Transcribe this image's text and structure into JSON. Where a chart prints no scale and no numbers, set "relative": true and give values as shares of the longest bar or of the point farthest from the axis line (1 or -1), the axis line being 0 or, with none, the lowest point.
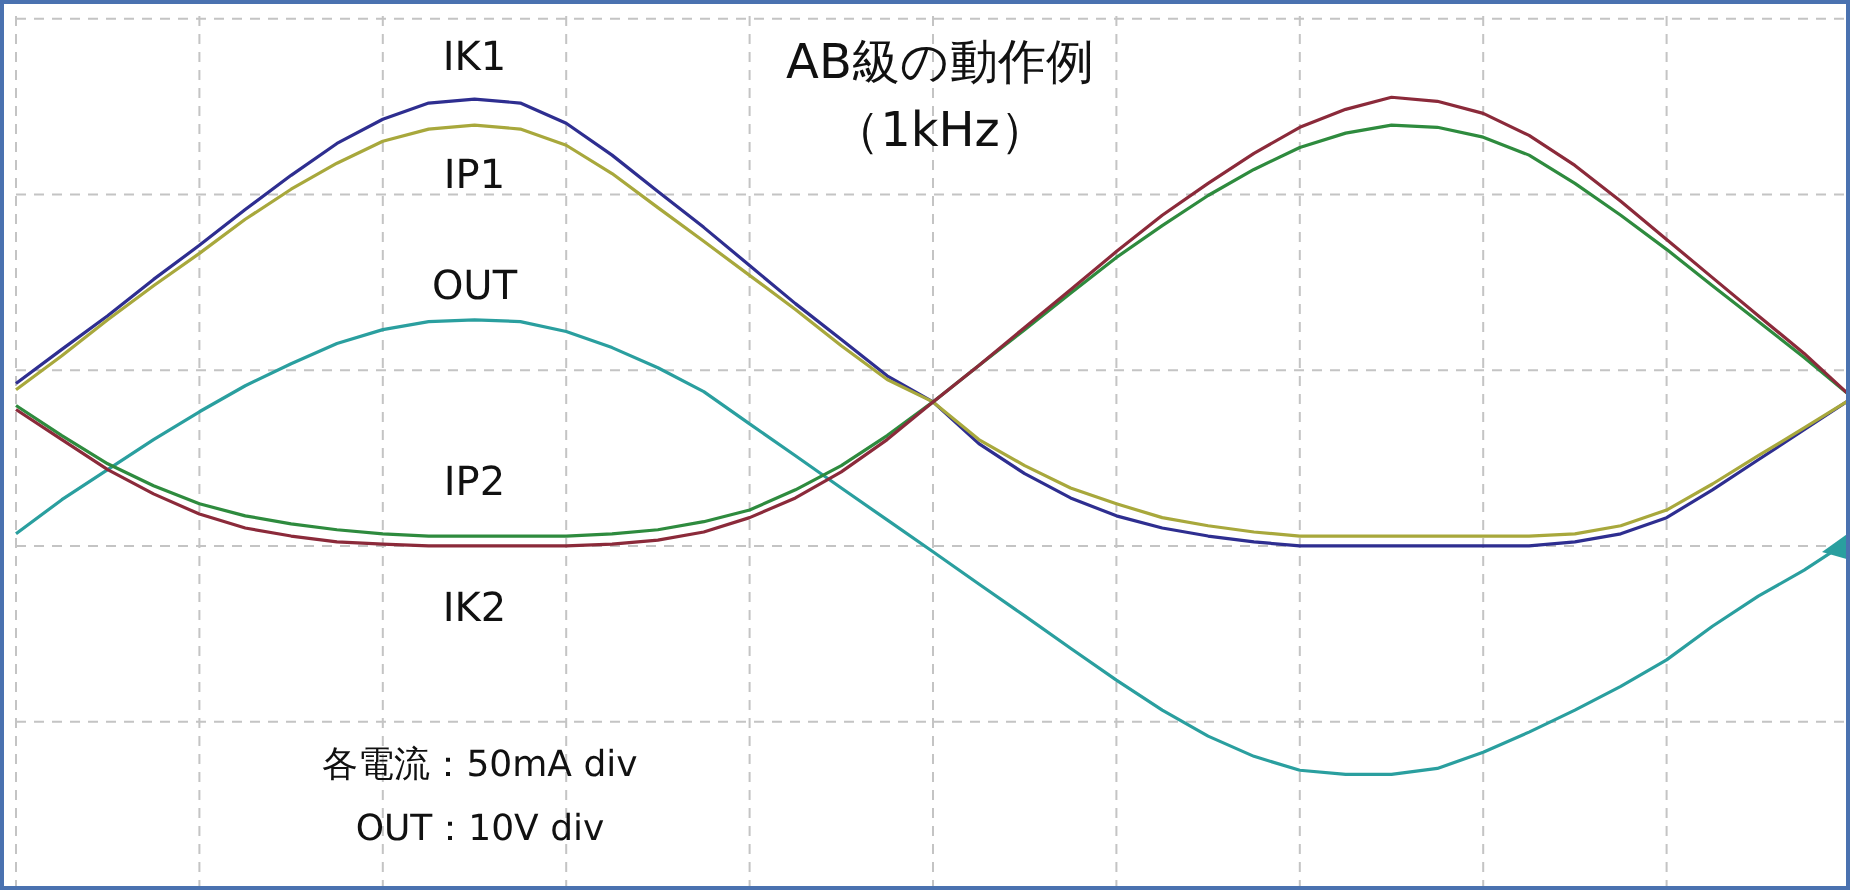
{
  "chart_data": {
    "type": "line",
    "title": "AB級の動作例",
    "subtitle": "（1kHz）",
    "relative": true,
    "grid": true,
    "tick_labels": false,
    "annotations": [
      "各電流：50mA div",
      "OUT：10V div"
    ],
    "categories": [
      null,
      null,
      null,
      null,
      null,
      null,
      null,
      null,
      null,
      null,
      null,
      null,
      null,
      null,
      null,
      null,
      null,
      null,
      null,
      null,
      null,
      null,
      null,
      null,
      null,
      null,
      null,
      null,
      null,
      null,
      null,
      null,
      null,
      null,
      null,
      null,
      null,
      null,
      null,
      null,
      null
    ],
    "series": [
      {
        "name": "IK1",
        "color": "#2e2e90",
        "values": [
          0.362,
          0.438,
          0.513,
          0.594,
          0.67,
          0.75,
          0.826,
          0.897,
          0.951,
          0.987,
          0.996,
          0.987,
          0.942,
          0.871,
          0.79,
          0.71,
          0.625,
          0.54,
          0.46,
          0.379,
          0.321,
          0.228,
          0.161,
          0.107,
          0.067,
          0.04,
          0.022,
          0.009,
          0,
          0,
          0,
          0,
          0,
          0,
          0.009,
          0.027,
          0.063,
          0.125,
          0.192,
          0.259,
          0.326
        ]
      },
      {
        "name": "IP1",
        "color": "#a8a83c",
        "values": [
          0.348,
          0.424,
          0.504,
          0.58,
          0.652,
          0.728,
          0.795,
          0.853,
          0.902,
          0.929,
          0.938,
          0.929,
          0.893,
          0.83,
          0.754,
          0.679,
          0.603,
          0.527,
          0.446,
          0.371,
          0.321,
          0.237,
          0.179,
          0.129,
          0.094,
          0.063,
          0.045,
          0.031,
          0.022,
          0.022,
          0.022,
          0.022,
          0.022,
          0.022,
          0.027,
          0.045,
          0.08,
          0.138,
          0.201,
          0.263,
          0.326
        ]
      },
      {
        "name": "OUT",
        "color": "#2a9f9f",
        "values": [
          0.027,
          0.103,
          0.17,
          0.237,
          0.299,
          0.357,
          0.406,
          0.451,
          0.482,
          0.5,
          0.504,
          0.5,
          0.478,
          0.442,
          0.397,
          0.344,
          0.272,
          0.201,
          0.129,
          0.058,
          -0.013,
          -0.085,
          -0.156,
          -0.228,
          -0.299,
          -0.366,
          -0.424,
          -0.469,
          -0.5,
          -0.509,
          -0.509,
          -0.496,
          -0.46,
          -0.415,
          -0.366,
          -0.313,
          -0.254,
          -0.179,
          -0.112,
          -0.054,
          0.013
        ]
      },
      {
        "name": "IP2",
        "color": "#2e8b3e",
        "values": [
          0.313,
          0.246,
          0.183,
          0.134,
          0.094,
          0.067,
          0.049,
          0.036,
          0.027,
          0.022,
          0.022,
          0.022,
          0.022,
          0.027,
          0.036,
          0.054,
          0.08,
          0.125,
          0.179,
          0.246,
          0.321,
          0.402,
          0.482,
          0.563,
          0.643,
          0.714,
          0.781,
          0.839,
          0.888,
          0.92,
          0.938,
          0.933,
          0.911,
          0.871,
          0.808,
          0.737,
          0.661,
          0.58,
          0.5,
          0.42,
          0.335
        ]
      },
      {
        "name": "IK2",
        "color": "#8b2a3a",
        "values": [
          0.304,
          0.237,
          0.17,
          0.116,
          0.071,
          0.04,
          0.022,
          0.009,
          0.004,
          0,
          0,
          0,
          0,
          0.004,
          0.013,
          0.031,
          0.063,
          0.107,
          0.165,
          0.237,
          0.321,
          0.402,
          0.487,
          0.571,
          0.656,
          0.737,
          0.808,
          0.875,
          0.933,
          0.973,
          1,
          0.991,
          0.964,
          0.915,
          0.848,
          0.768,
          0.683,
          0.598,
          0.513,
          0.429,
          0.335
        ]
      }
    ]
  }
}
